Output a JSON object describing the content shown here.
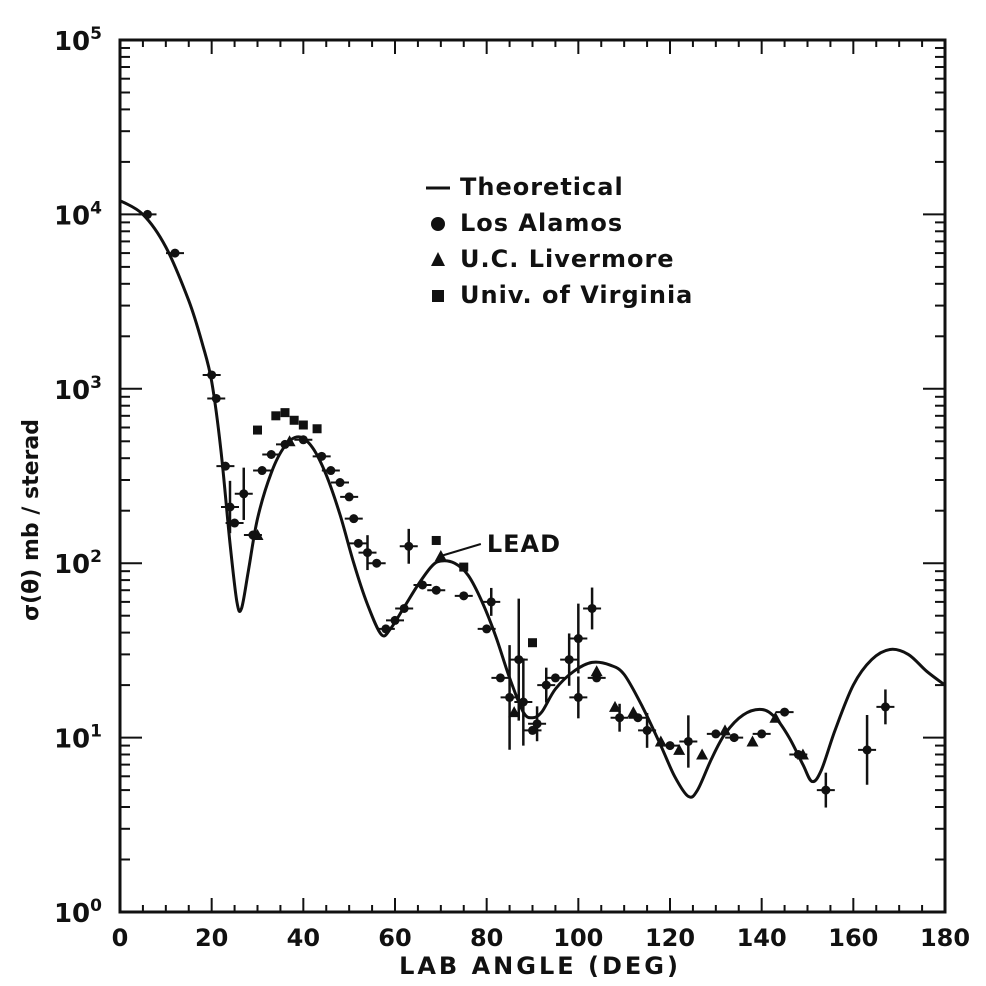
{
  "chart_data": {
    "type": "scatter",
    "xlabel": "LAB ANGLE (DEG)",
    "ylabel": "σ(θ) mb / sterad",
    "xlim": [
      0,
      180
    ],
    "ylim_log10": [
      0,
      5
    ],
    "yscale": "log",
    "grid": false,
    "legend_position": "upper-center",
    "x_ticks": [
      "0",
      "20",
      "40",
      "60",
      "80",
      "100",
      "120",
      "140",
      "160",
      "180"
    ],
    "y_ticks": [
      {
        "base": "10",
        "exp": "0",
        "value": 1
      },
      {
        "base": "10",
        "exp": "1",
        "value": 10
      },
      {
        "base": "10",
        "exp": "2",
        "value": 100
      },
      {
        "base": "10",
        "exp": "3",
        "value": 1000
      },
      {
        "base": "10",
        "exp": "4",
        "value": 10000
      },
      {
        "base": "10",
        "exp": "5",
        "value": 100000
      }
    ],
    "annotation": {
      "text": "LEAD",
      "x": 70,
      "y": 110
    },
    "legend": [
      {
        "label": "Theoretical",
        "marker": "line"
      },
      {
        "label": "Los Alamos",
        "marker": "circle"
      },
      {
        "label": "U.C. Livermore",
        "marker": "triangle"
      },
      {
        "label": "Univ. of Virginia",
        "marker": "square"
      }
    ],
    "series": [
      {
        "name": "Theoretical",
        "kind": "line",
        "points": [
          [
            0,
            12000
          ],
          [
            5,
            10000
          ],
          [
            10,
            6500
          ],
          [
            15,
            3200
          ],
          [
            18,
            1800
          ],
          [
            20,
            1100
          ],
          [
            22,
            450
          ],
          [
            24,
            130
          ],
          [
            25.5,
            60
          ],
          [
            26.5,
            55
          ],
          [
            28,
            90
          ],
          [
            30,
            180
          ],
          [
            33,
            330
          ],
          [
            36,
            470
          ],
          [
            39,
            530
          ],
          [
            42,
            460
          ],
          [
            45,
            320
          ],
          [
            48,
            190
          ],
          [
            51,
            100
          ],
          [
            54,
            58
          ],
          [
            57,
            39
          ],
          [
            59,
            42
          ],
          [
            62,
            56
          ],
          [
            65,
            75
          ],
          [
            68,
            96
          ],
          [
            70,
            103
          ],
          [
            73,
            100
          ],
          [
            76,
            85
          ],
          [
            79,
            60
          ],
          [
            82,
            38
          ],
          [
            85,
            22
          ],
          [
            88,
            14
          ],
          [
            90,
            13
          ],
          [
            92,
            14
          ],
          [
            95,
            19
          ],
          [
            99,
            24
          ],
          [
            103,
            27
          ],
          [
            107,
            26
          ],
          [
            110,
            23
          ],
          [
            114,
            15
          ],
          [
            118,
            9
          ],
          [
            121,
            6
          ],
          [
            124,
            4.6
          ],
          [
            126,
            5
          ],
          [
            129,
            7.5
          ],
          [
            132,
            10.5
          ],
          [
            136,
            13.5
          ],
          [
            140,
            14.5
          ],
          [
            143,
            13
          ],
          [
            146,
            10
          ],
          [
            149,
            7
          ],
          [
            151,
            5.6
          ],
          [
            153,
            6.5
          ],
          [
            156,
            11
          ],
          [
            160,
            20
          ],
          [
            164,
            28
          ],
          [
            168,
            32
          ],
          [
            172,
            30
          ],
          [
            176,
            24
          ],
          [
            180,
            20
          ]
        ]
      },
      {
        "name": "Los Alamos",
        "kind": "circle",
        "points": [
          [
            6,
            10000,
            0
          ],
          [
            12,
            6000,
            0
          ],
          [
            20,
            1200,
            0
          ],
          [
            21,
            880,
            0
          ],
          [
            23,
            360,
            0
          ],
          [
            24,
            210,
            0.15
          ],
          [
            25,
            170,
            0
          ],
          [
            27,
            250,
            0.15
          ],
          [
            29,
            145,
            0
          ],
          [
            31,
            340,
            0
          ],
          [
            33,
            420,
            0
          ],
          [
            36,
            480,
            0
          ],
          [
            40,
            510,
            0
          ],
          [
            44,
            410,
            0
          ],
          [
            46,
            340,
            0
          ],
          [
            48,
            290,
            0
          ],
          [
            50,
            240,
            0
          ],
          [
            51,
            180,
            0
          ],
          [
            52,
            130,
            0
          ],
          [
            54,
            115,
            0.1
          ],
          [
            56,
            100,
            0
          ],
          [
            58,
            42,
            0
          ],
          [
            60,
            47,
            0
          ],
          [
            62,
            55,
            0
          ],
          [
            63,
            125,
            0.1
          ],
          [
            66,
            75,
            0
          ],
          [
            69,
            70,
            0
          ],
          [
            75,
            65,
            0
          ],
          [
            80,
            42,
            0
          ],
          [
            81,
            60,
            0.08
          ],
          [
            83,
            22,
            0
          ],
          [
            85,
            17,
            0.3
          ],
          [
            87,
            28,
            0.35
          ],
          [
            88,
            16,
            0.25
          ],
          [
            90,
            11,
            0
          ],
          [
            91,
            12,
            0.1
          ],
          [
            93,
            20,
            0.1
          ],
          [
            95,
            22,
            0
          ],
          [
            98,
            28,
            0.15
          ],
          [
            100,
            37,
            0.2
          ],
          [
            100,
            17,
            0.12
          ],
          [
            103,
            55,
            0.12
          ],
          [
            104,
            22,
            0
          ],
          [
            109,
            13,
            0.08
          ],
          [
            113,
            13,
            0
          ],
          [
            115,
            11,
            0.1
          ],
          [
            120,
            9,
            0
          ],
          [
            124,
            9.5,
            0.15
          ],
          [
            130,
            10.5,
            0
          ],
          [
            134,
            10,
            0
          ],
          [
            140,
            10.5,
            0
          ],
          [
            145,
            14,
            0
          ],
          [
            148,
            8,
            0
          ],
          [
            154,
            5,
            0.1
          ],
          [
            163,
            8.5,
            0.2
          ],
          [
            167,
            15,
            0.1
          ]
        ]
      },
      {
        "name": "U.C. Livermore",
        "kind": "triangle",
        "points": [
          [
            30,
            145
          ],
          [
            37,
            500
          ],
          [
            70,
            110
          ],
          [
            86,
            14
          ],
          [
            104,
            24
          ],
          [
            108,
            15
          ],
          [
            112,
            14
          ],
          [
            118,
            9.5
          ],
          [
            122,
            8.5
          ],
          [
            127,
            8
          ],
          [
            132,
            11
          ],
          [
            138,
            9.5
          ],
          [
            143,
            13
          ],
          [
            149,
            8
          ]
        ]
      },
      {
        "name": "Univ. of Virginia",
        "kind": "square",
        "points": [
          [
            30,
            580
          ],
          [
            34,
            700
          ],
          [
            36,
            730
          ],
          [
            38,
            660
          ],
          [
            40,
            620
          ],
          [
            43,
            590
          ],
          [
            69,
            135
          ],
          [
            75,
            95
          ],
          [
            90,
            35
          ]
        ]
      }
    ]
  }
}
